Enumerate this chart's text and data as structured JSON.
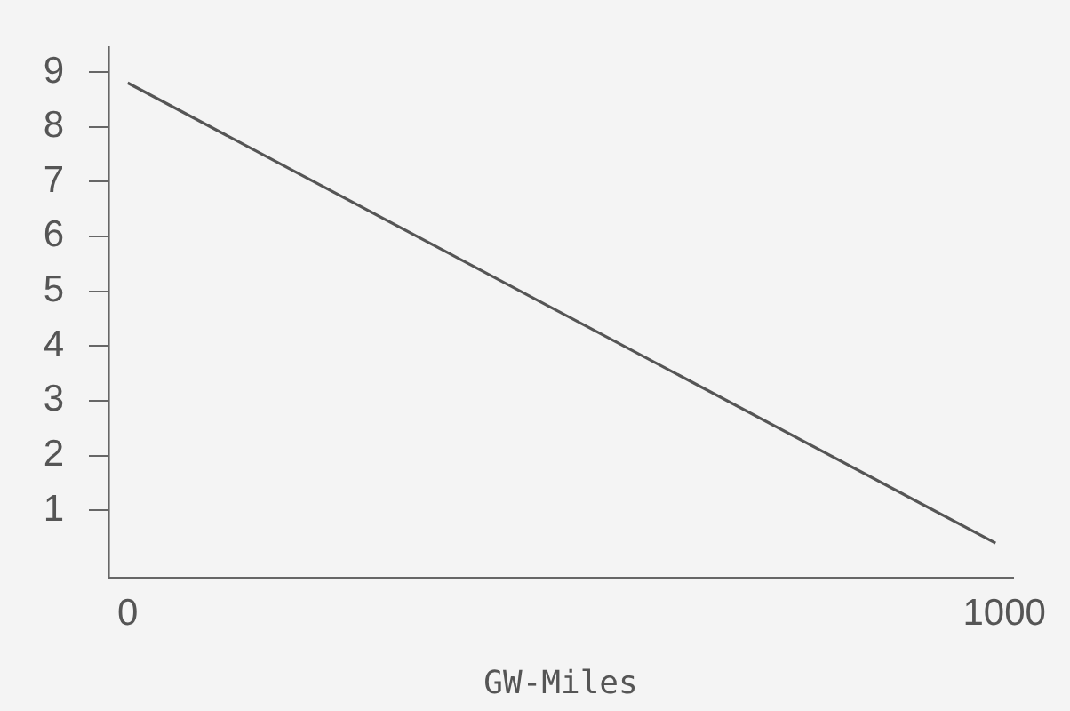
{
  "chart_data": {
    "type": "line",
    "xlabel": "GW-Miles",
    "x": [
      0,
      990
    ],
    "series": [
      {
        "color": "#555555",
        "values": [
          8.8,
          0.4
        ]
      }
    ],
    "xlim": [
      -22,
      1010
    ],
    "xticks": [
      0,
      1000
    ],
    "ylim": [
      -0.23,
      9.45
    ],
    "yticks": [
      1,
      2,
      3,
      4,
      5,
      6,
      7,
      8,
      9
    ],
    "grid": false,
    "legend": false,
    "marker": "none",
    "line_style": "solid"
  }
}
